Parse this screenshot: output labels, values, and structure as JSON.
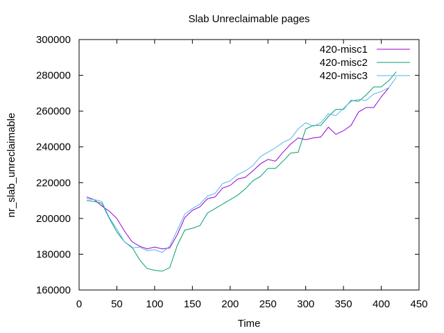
{
  "chart_data": {
    "type": "line",
    "title": "Slab Unreclaimable pages",
    "xlabel": "Time",
    "ylabel": "nr_slab_unreclaimable",
    "xlim": [
      0,
      450
    ],
    "ylim": [
      160000,
      300000
    ],
    "xticks": [
      0,
      50,
      100,
      150,
      200,
      250,
      300,
      350,
      400,
      450
    ],
    "yticks": [
      160000,
      180000,
      200000,
      220000,
      240000,
      260000,
      280000,
      300000
    ],
    "xtick_labels": [
      "0",
      "50",
      "100",
      "150",
      "200",
      "250",
      "300",
      "350",
      "400",
      "450"
    ],
    "ytick_labels": [
      "160000",
      "180000",
      "200000",
      "220000",
      "240000",
      "260000",
      "280000",
      "300000"
    ],
    "grid": false,
    "legend_position": "top-right",
    "series": [
      {
        "name": "420-misc1",
        "color": "#9400d3",
        "x": [
          10,
          20,
          30,
          40,
          50,
          60,
          70,
          80,
          90,
          100,
          110,
          120,
          130,
          140,
          150,
          160,
          170,
          180,
          190,
          200,
          210,
          220,
          230,
          240,
          250,
          260,
          270,
          280,
          290,
          300,
          310,
          320,
          330,
          340,
          350,
          360,
          370,
          380,
          390,
          400,
          410
        ],
        "y": [
          212000,
          210500,
          207000,
          204000,
          200000,
          193000,
          187000,
          184500,
          183000,
          184000,
          183000,
          183500,
          191000,
          200500,
          204500,
          206500,
          211000,
          212000,
          217000,
          218500,
          222000,
          223000,
          226500,
          230500,
          233000,
          232000,
          237000,
          241500,
          245000,
          244000,
          245000,
          245500,
          251000,
          247000,
          249000,
          252000,
          259500,
          262000,
          262000,
          268000,
          273000
        ]
      },
      {
        "name": "420-misc2",
        "color": "#009e73",
        "x": [
          10,
          20,
          30,
          40,
          50,
          60,
          70,
          80,
          90,
          100,
          110,
          120,
          130,
          140,
          150,
          160,
          170,
          180,
          190,
          200,
          210,
          220,
          230,
          240,
          250,
          260,
          270,
          280,
          290,
          300,
          310,
          320,
          330,
          340,
          350,
          360,
          370,
          380,
          390,
          400,
          410,
          420
        ],
        "y": [
          210000,
          209500,
          208500,
          200000,
          192500,
          187000,
          184000,
          177000,
          172000,
          171000,
          170500,
          172500,
          185000,
          193500,
          194500,
          196000,
          203000,
          205500,
          208000,
          210500,
          213000,
          216500,
          221000,
          223500,
          228000,
          228000,
          232000,
          236500,
          237000,
          250000,
          252000,
          252000,
          257000,
          261000,
          261000,
          266000,
          265500,
          269000,
          273500,
          273500,
          277000,
          282000
        ]
      },
      {
        "name": "420-misc3",
        "color": "#56b4e9",
        "x": [
          10,
          20,
          30,
          40,
          50,
          60,
          70,
          80,
          90,
          100,
          110,
          120,
          130,
          140,
          150,
          160,
          170,
          180,
          190,
          200,
          210,
          220,
          230,
          240,
          250,
          260,
          270,
          280,
          290,
          300,
          310,
          320,
          330,
          340,
          350,
          360,
          370,
          380,
          390,
          400,
          410,
          420
        ],
        "y": [
          211000,
          210500,
          209500,
          200500,
          194000,
          187000,
          183500,
          184000,
          182000,
          182500,
          181000,
          184500,
          193500,
          202500,
          205500,
          208000,
          212500,
          214000,
          219500,
          221000,
          224500,
          226500,
          229500,
          234500,
          237000,
          239500,
          242500,
          244500,
          250000,
          253500,
          251500,
          253500,
          258500,
          257500,
          261500,
          265500,
          266500,
          266000,
          269500,
          271000,
          273000,
          279000
        ]
      }
    ]
  }
}
